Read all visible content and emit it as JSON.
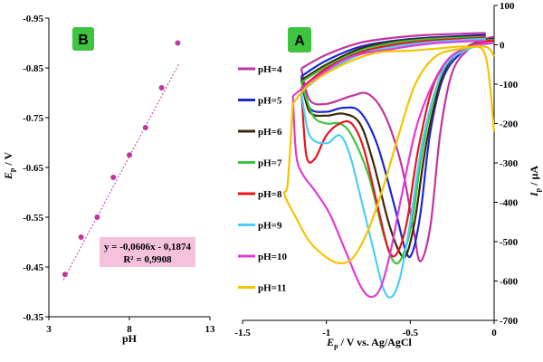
{
  "chart_data": [
    {
      "panel": "B",
      "type": "scatter",
      "title": "",
      "xlabel": "pH",
      "ylabel": "E_p / V",
      "xlim": [
        3,
        13
      ],
      "ylim": [
        -0.95,
        -0.35
      ],
      "y_reversed": true,
      "xticks": [
        "3",
        "8",
        "13"
      ],
      "yticks": [
        "-0.95",
        "-0.85",
        "-0.75",
        "-0.65",
        "-0.55",
        "-0.45",
        "-0.35"
      ],
      "points": {
        "x": [
          4,
          5,
          6,
          7,
          8,
          9,
          10,
          11
        ],
        "y": [
          -0.435,
          -0.51,
          -0.55,
          -0.63,
          -0.675,
          -0.73,
          -0.81,
          -0.9
        ]
      },
      "trendline": {
        "equation": "y = -0,0606x - 0,1874",
        "r2": "R² = 0,9908",
        "slope": -0.0606,
        "intercept": -0.1874
      },
      "marker_color": "#c2349e",
      "trend_color": "#c2349e",
      "equation_box_color": "#f5c2dc",
      "panel_badge_color": "#3ec43e"
    },
    {
      "panel": "A",
      "type": "line",
      "title": "",
      "xlabel": "E_p / V vs. Ag/AgCl",
      "ylabel": "I_p / µA",
      "xlim": [
        -1.5,
        0
      ],
      "ylim": [
        -700,
        100
      ],
      "xticks": [
        "-1.5",
        "-1",
        "-0.5",
        "0"
      ],
      "yticks": [
        "100",
        "0",
        "-100",
        "-200",
        "-300",
        "-400",
        "-500",
        "-600",
        "-700"
      ],
      "series": [
        {
          "name": "pH=4",
          "color": "#c2349e",
          "upper": [
            [
              -1.15,
              -60
            ],
            [
              -1.0,
              -25
            ],
            [
              -0.8,
              5
            ],
            [
              -0.6,
              18
            ],
            [
              -0.4,
              25
            ],
            [
              -0.2,
              28
            ],
            [
              -0.05,
              30
            ]
          ],
          "lower": [
            [
              -1.15,
              -60
            ],
            [
              -1.1,
              -140
            ],
            [
              -1.0,
              -150
            ],
            [
              -0.85,
              -130
            ],
            [
              -0.75,
              -125
            ],
            [
              -0.65,
              -180
            ],
            [
              -0.55,
              -310
            ],
            [
              -0.48,
              -470
            ],
            [
              -0.44,
              -550
            ],
            [
              -0.38,
              -460
            ],
            [
              -0.32,
              -220
            ],
            [
              -0.25,
              -70
            ],
            [
              -0.15,
              -10
            ],
            [
              -0.05,
              15
            ],
            [
              0,
              20
            ]
          ]
        },
        {
          "name": "pH=5",
          "color": "#1c27d8",
          "upper": [
            [
              -1.15,
              -80
            ],
            [
              -1.0,
              -40
            ],
            [
              -0.8,
              -5
            ],
            [
              -0.6,
              10
            ],
            [
              -0.4,
              18
            ],
            [
              -0.2,
              22
            ],
            [
              -0.05,
              25
            ]
          ],
          "lower": [
            [
              -1.15,
              -80
            ],
            [
              -1.1,
              -160
            ],
            [
              -1.0,
              -170
            ],
            [
              -0.9,
              -160
            ],
            [
              -0.8,
              -170
            ],
            [
              -0.7,
              -250
            ],
            [
              -0.6,
              -400
            ],
            [
              -0.53,
              -520
            ],
            [
              -0.49,
              -530
            ],
            [
              -0.44,
              -430
            ],
            [
              -0.38,
              -220
            ],
            [
              -0.3,
              -80
            ],
            [
              -0.18,
              -15
            ],
            [
              -0.05,
              10
            ],
            [
              0,
              15
            ]
          ]
        },
        {
          "name": "pH=6",
          "color": "#3a2b06",
          "upper": [
            [
              -1.15,
              -90
            ],
            [
              -1.0,
              -50
            ],
            [
              -0.8,
              -10
            ],
            [
              -0.6,
              8
            ],
            [
              -0.4,
              16
            ],
            [
              -0.2,
              20
            ],
            [
              -0.05,
              22
            ]
          ],
          "lower": [
            [
              -1.15,
              -90
            ],
            [
              -1.1,
              -170
            ],
            [
              -1.0,
              -180
            ],
            [
              -0.9,
              -175
            ],
            [
              -0.8,
              -200
            ],
            [
              -0.72,
              -300
            ],
            [
              -0.63,
              -450
            ],
            [
              -0.56,
              -530
            ],
            [
              -0.52,
              -530
            ],
            [
              -0.47,
              -440
            ],
            [
              -0.4,
              -240
            ],
            [
              -0.3,
              -70
            ],
            [
              -0.18,
              -10
            ],
            [
              -0.05,
              12
            ],
            [
              0,
              15
            ]
          ]
        },
        {
          "name": "pH=7",
          "color": "#3ec43e",
          "upper": [
            [
              -1.15,
              -95
            ],
            [
              -1.0,
              -55
            ],
            [
              -0.8,
              -15
            ],
            [
              -0.6,
              5
            ],
            [
              -0.4,
              14
            ],
            [
              -0.2,
              18
            ],
            [
              -0.05,
              20
            ]
          ],
          "lower": [
            [
              -1.15,
              -95
            ],
            [
              -1.08,
              -180
            ],
            [
              -1.0,
              -200
            ],
            [
              -0.92,
              -200
            ],
            [
              -0.85,
              -230
            ],
            [
              -0.75,
              -330
            ],
            [
              -0.66,
              -480
            ],
            [
              -0.6,
              -550
            ],
            [
              -0.55,
              -540
            ],
            [
              -0.49,
              -450
            ],
            [
              -0.42,
              -250
            ],
            [
              -0.32,
              -80
            ],
            [
              -0.2,
              -15
            ],
            [
              -0.05,
              10
            ],
            [
              0,
              12
            ]
          ]
        },
        {
          "name": "pH=8",
          "color": "#e8141d",
          "upper": [
            [
              -1.15,
              -110
            ],
            [
              -1.0,
              -60
            ],
            [
              -0.8,
              -20
            ],
            [
              -0.6,
              0
            ],
            [
              -0.4,
              10
            ],
            [
              -0.2,
              15
            ],
            [
              -0.05,
              18
            ]
          ],
          "lower": [
            [
              -1.15,
              -110
            ],
            [
              -1.12,
              -280
            ],
            [
              -1.07,
              -290
            ],
            [
              -1.0,
              -230
            ],
            [
              -0.92,
              -200
            ],
            [
              -0.85,
              -200
            ],
            [
              -0.78,
              -260
            ],
            [
              -0.7,
              -400
            ],
            [
              -0.63,
              -520
            ],
            [
              -0.58,
              -530
            ],
            [
              -0.52,
              -450
            ],
            [
              -0.45,
              -260
            ],
            [
              -0.35,
              -90
            ],
            [
              -0.2,
              -15
            ],
            [
              -0.05,
              8
            ],
            [
              0,
              10
            ]
          ]
        },
        {
          "name": "pH=9",
          "color": "#4ecdf5",
          "upper": [
            [
              -1.15,
              -120
            ],
            [
              -1.0,
              -70
            ],
            [
              -0.8,
              -25
            ],
            [
              -0.6,
              -5
            ],
            [
              -0.4,
              6
            ],
            [
              -0.2,
              12
            ],
            [
              -0.05,
              15
            ]
          ],
          "lower": [
            [
              -1.15,
              -120
            ],
            [
              -1.1,
              -230
            ],
            [
              -1.0,
              -250
            ],
            [
              -0.92,
              -230
            ],
            [
              -0.86,
              -280
            ],
            [
              -0.8,
              -380
            ],
            [
              -0.72,
              -520
            ],
            [
              -0.66,
              -620
            ],
            [
              -0.61,
              -640
            ],
            [
              -0.56,
              -590
            ],
            [
              -0.5,
              -450
            ],
            [
              -0.42,
              -230
            ],
            [
              -0.3,
              -60
            ],
            [
              -0.15,
              -10
            ],
            [
              0,
              5
            ]
          ]
        },
        {
          "name": "pH=10",
          "color": "#e23bd4",
          "upper": [
            [
              -1.2,
              -130
            ],
            [
              -1.05,
              -80
            ],
            [
              -0.85,
              -30
            ],
            [
              -0.6,
              -10
            ],
            [
              -0.4,
              2
            ],
            [
              -0.2,
              8
            ],
            [
              -0.05,
              10
            ]
          ],
          "lower": [
            [
              -1.2,
              -130
            ],
            [
              -1.18,
              -280
            ],
            [
              -1.14,
              -330
            ],
            [
              -1.07,
              -370
            ],
            [
              -0.98,
              -430
            ],
            [
              -0.88,
              -530
            ],
            [
              -0.8,
              -610
            ],
            [
              -0.74,
              -640
            ],
            [
              -0.68,
              -620
            ],
            [
              -0.62,
              -530
            ],
            [
              -0.55,
              -380
            ],
            [
              -0.45,
              -190
            ],
            [
              -0.3,
              -50
            ],
            [
              -0.15,
              -5
            ],
            [
              0,
              5
            ]
          ]
        },
        {
          "name": "pH=11",
          "color": "#f5c400",
          "upper": [
            [
              -1.2,
              -150
            ],
            [
              -1.1,
              -100
            ],
            [
              -0.9,
              -50
            ],
            [
              -0.7,
              -20
            ],
            [
              -0.5,
              -15
            ],
            [
              -0.35,
              -10
            ],
            [
              -0.15,
              -5
            ],
            [
              -0.05,
              -30
            ],
            [
              0,
              -220
            ]
          ],
          "lower": [
            [
              -1.2,
              -150
            ],
            [
              -1.23,
              -350
            ],
            [
              -1.25,
              -380
            ],
            [
              -1.18,
              -440
            ],
            [
              -1.1,
              -500
            ],
            [
              -1.0,
              -540
            ],
            [
              -0.92,
              -555
            ],
            [
              -0.84,
              -540
            ],
            [
              -0.75,
              -470
            ],
            [
              -0.66,
              -360
            ],
            [
              -0.57,
              -230
            ],
            [
              -0.47,
              -100
            ],
            [
              -0.35,
              -30
            ],
            [
              -0.2,
              -10
            ],
            [
              -0.05,
              -5
            ],
            [
              0,
              -30
            ]
          ]
        }
      ],
      "panel_badge_color": "#3ec43e"
    }
  ],
  "labels": {
    "panel_b": "B",
    "panel_a": "A",
    "b_xlabel": "pH",
    "b_ylabel_main": "E",
    "b_ylabel_sub": "p",
    "b_ylabel_unit": " / V",
    "a_xlabel_main": "E",
    "a_xlabel_sub": "p",
    "a_xlabel_unit": " / V vs. Ag/AgCl",
    "a_ylabel_main": "I",
    "a_ylabel_sub": "p",
    "a_ylabel_unit": " / µA"
  }
}
